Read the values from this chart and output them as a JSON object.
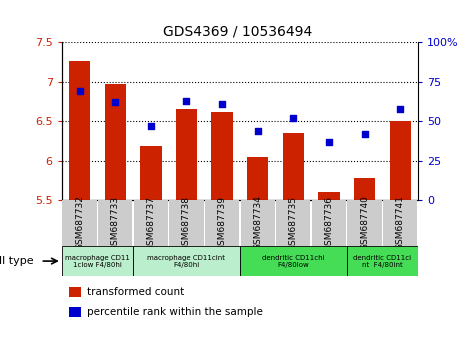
{
  "title": "GDS4369 / 10536494",
  "samples": [
    "GSM687732",
    "GSM687733",
    "GSM687737",
    "GSM687738",
    "GSM687739",
    "GSM687734",
    "GSM687735",
    "GSM687736",
    "GSM687740",
    "GSM687741"
  ],
  "transformed_count": [
    7.27,
    6.97,
    6.18,
    6.65,
    6.62,
    6.05,
    6.35,
    5.6,
    5.78,
    6.5
  ],
  "percentile_rank": [
    69,
    62,
    47,
    63,
    61,
    44,
    52,
    37,
    42,
    58
  ],
  "ylim_left": [
    5.5,
    7.5
  ],
  "ylim_right": [
    0,
    100
  ],
  "yticks_left": [
    5.5,
    6.0,
    6.5,
    7.0,
    7.5
  ],
  "yticks_right": [
    0,
    25,
    50,
    75,
    100
  ],
  "bar_color": "#cc2200",
  "scatter_color": "#0000cc",
  "cell_types": [
    {
      "label": "macrophage CD11\n1clow F4/80hi",
      "span": [
        0,
        2
      ],
      "color": "#bbeecc"
    },
    {
      "label": "macrophage CD11cint\nF4/80hi",
      "span": [
        2,
        5
      ],
      "color": "#bbeecc"
    },
    {
      "label": "dendritic CD11chi\nF4/80low",
      "span": [
        5,
        8
      ],
      "color": "#44dd55"
    },
    {
      "label": "dendritic CD11ci\nnt  F4/80int",
      "span": [
        8,
        10
      ],
      "color": "#44dd55"
    }
  ],
  "legend_bar_label": "transformed count",
  "legend_scatter_label": "percentile rank within the sample",
  "cell_type_label": "cell type",
  "background_color": "#ffffff",
  "tick_color_left": "#cc2200",
  "tick_color_right": "#0000cc",
  "xtick_bg_color": "#cccccc"
}
